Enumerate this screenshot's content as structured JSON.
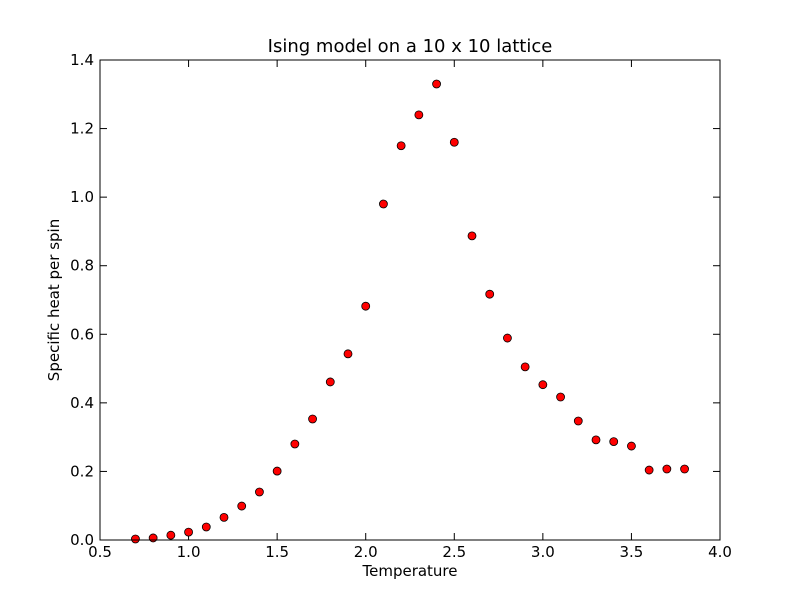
{
  "chart_data": {
    "type": "scatter",
    "title": "Ising model on a 10 x 10 lattice",
    "xlabel": "Temperature",
    "ylabel": "Specific heat per spin",
    "xlim": [
      0.5,
      4.0
    ],
    "ylim": [
      0.0,
      1.4
    ],
    "x_ticks": [
      0.5,
      1.0,
      1.5,
      2.0,
      2.5,
      3.0,
      3.5,
      4.0
    ],
    "x_tick_labels": [
      "0.5",
      "1.0",
      "1.5",
      "2.0",
      "2.5",
      "3.0",
      "3.5",
      "4.0"
    ],
    "y_ticks": [
      0.0,
      0.2,
      0.4,
      0.6,
      0.8,
      1.0,
      1.2,
      1.4
    ],
    "y_tick_labels": [
      "0.0",
      "0.2",
      "0.4",
      "0.6",
      "0.8",
      "1.0",
      "1.2",
      "1.4"
    ],
    "grid": false,
    "marker_color": "#ff0000",
    "marker_edge_color": "#000000",
    "series": [
      {
        "x": [
          0.7,
          0.8,
          0.9,
          1.0,
          1.1,
          1.2,
          1.3,
          1.4,
          1.5,
          1.6,
          1.7,
          1.8,
          1.9,
          2.0,
          2.1,
          2.2,
          2.3,
          2.4,
          2.5,
          2.6,
          2.7,
          2.8,
          2.9,
          3.0,
          3.1,
          3.2,
          3.3,
          3.4,
          3.5,
          3.6,
          3.7,
          3.8
        ],
        "y": [
          0.003,
          0.006,
          0.014,
          0.023,
          0.038,
          0.066,
          0.099,
          0.14,
          0.201,
          0.28,
          0.353,
          0.461,
          0.543,
          0.682,
          0.98,
          1.15,
          1.24,
          1.33,
          1.16,
          0.887,
          0.717,
          0.589,
          0.505,
          0.453,
          0.417,
          0.347,
          0.292,
          0.287,
          0.274,
          0.204,
          0.207,
          0.207
        ]
      }
    ]
  }
}
